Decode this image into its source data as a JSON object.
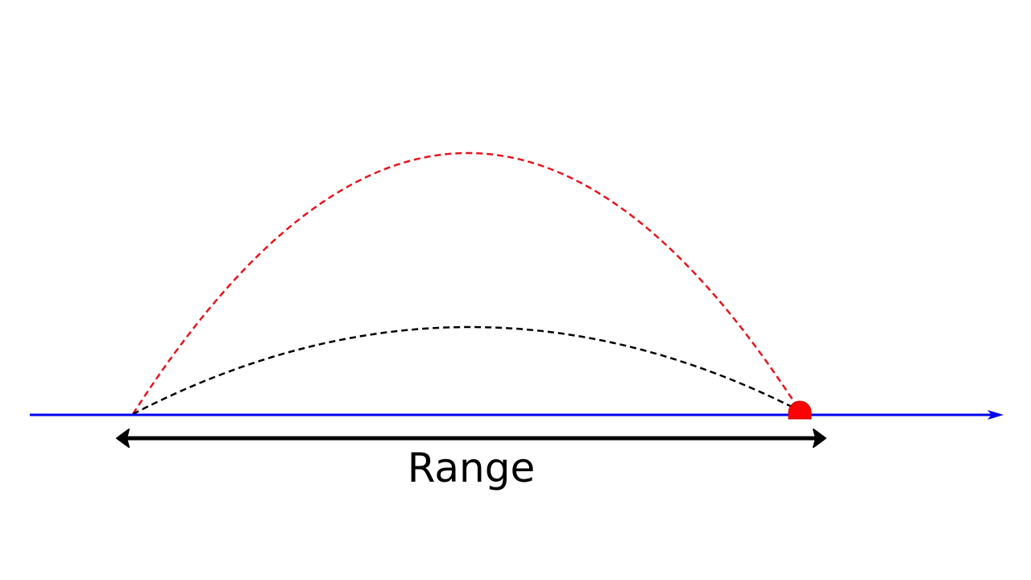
{
  "label": "Range"
}
